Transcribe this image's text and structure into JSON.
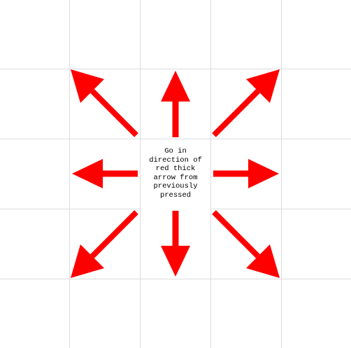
{
  "board": {
    "grid_line_color": "#dcdcdc",
    "background_color": "#ffffff"
  },
  "center": {
    "instruction": "Go in\ndirection of\nred thick\narrow from\npreviously\npressed"
  },
  "arrows": {
    "color": "#ff0000",
    "directions": [
      "up-left",
      "up",
      "up-right",
      "left",
      "right",
      "down-left",
      "down",
      "down-right"
    ]
  }
}
